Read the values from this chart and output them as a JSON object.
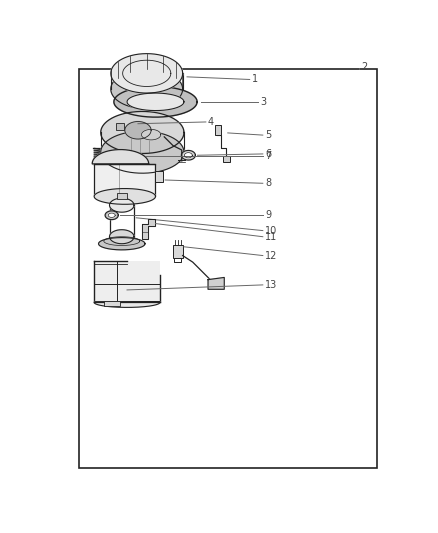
{
  "background_color": "#ffffff",
  "border_color": "#222222",
  "line_color": "#666666",
  "text_color": "#444444",
  "fig_width": 4.38,
  "fig_height": 5.33,
  "dpi": 100,
  "border": [
    0.18,
    0.04,
    0.86,
    0.95
  ]
}
